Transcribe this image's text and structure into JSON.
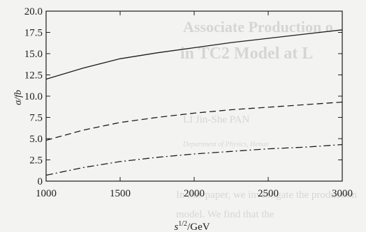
{
  "background_text": [
    "Associate Production o",
    "in TC2 Model at L",
    "LI Jin-She  PAN",
    "Department of Physics, Henan",
    "In this paper, we investigate the production",
    "model. We find that the"
  ],
  "chart_data": {
    "type": "line",
    "xlabel": "s",
    "xlabel_superscript": "1/2",
    "xlabel_unit": "/GeV",
    "ylabel": "σ/fb",
    "xlim": [
      1000,
      3000
    ],
    "ylim": [
      0,
      20
    ],
    "x_ticks": [
      1000,
      1500,
      2000,
      2500,
      3000
    ],
    "y_ticks": [
      "0",
      "2.5",
      "5.0",
      "7.5",
      "10.0",
      "12.5",
      "15.0",
      "17.5",
      "20.0"
    ],
    "grid": false,
    "series": [
      {
        "style": "solid",
        "x": [
          1000,
          1250,
          1500,
          1750,
          2000,
          2250,
          2500,
          2750,
          3000
        ],
        "y": [
          12.0,
          13.3,
          14.4,
          15.1,
          15.7,
          16.3,
          16.8,
          17.3,
          17.8
        ]
      },
      {
        "style": "dashed",
        "x": [
          1000,
          1250,
          1500,
          1750,
          2000,
          2250,
          2500,
          2750,
          3000
        ],
        "y": [
          4.8,
          6.0,
          6.9,
          7.5,
          8.0,
          8.4,
          8.7,
          9.0,
          9.3
        ]
      },
      {
        "style": "dashdot",
        "x": [
          1000,
          1250,
          1500,
          1750,
          2000,
          2250,
          2500,
          2750,
          3000
        ],
        "y": [
          0.7,
          1.6,
          2.3,
          2.8,
          3.2,
          3.5,
          3.8,
          4.0,
          4.3
        ]
      }
    ]
  }
}
